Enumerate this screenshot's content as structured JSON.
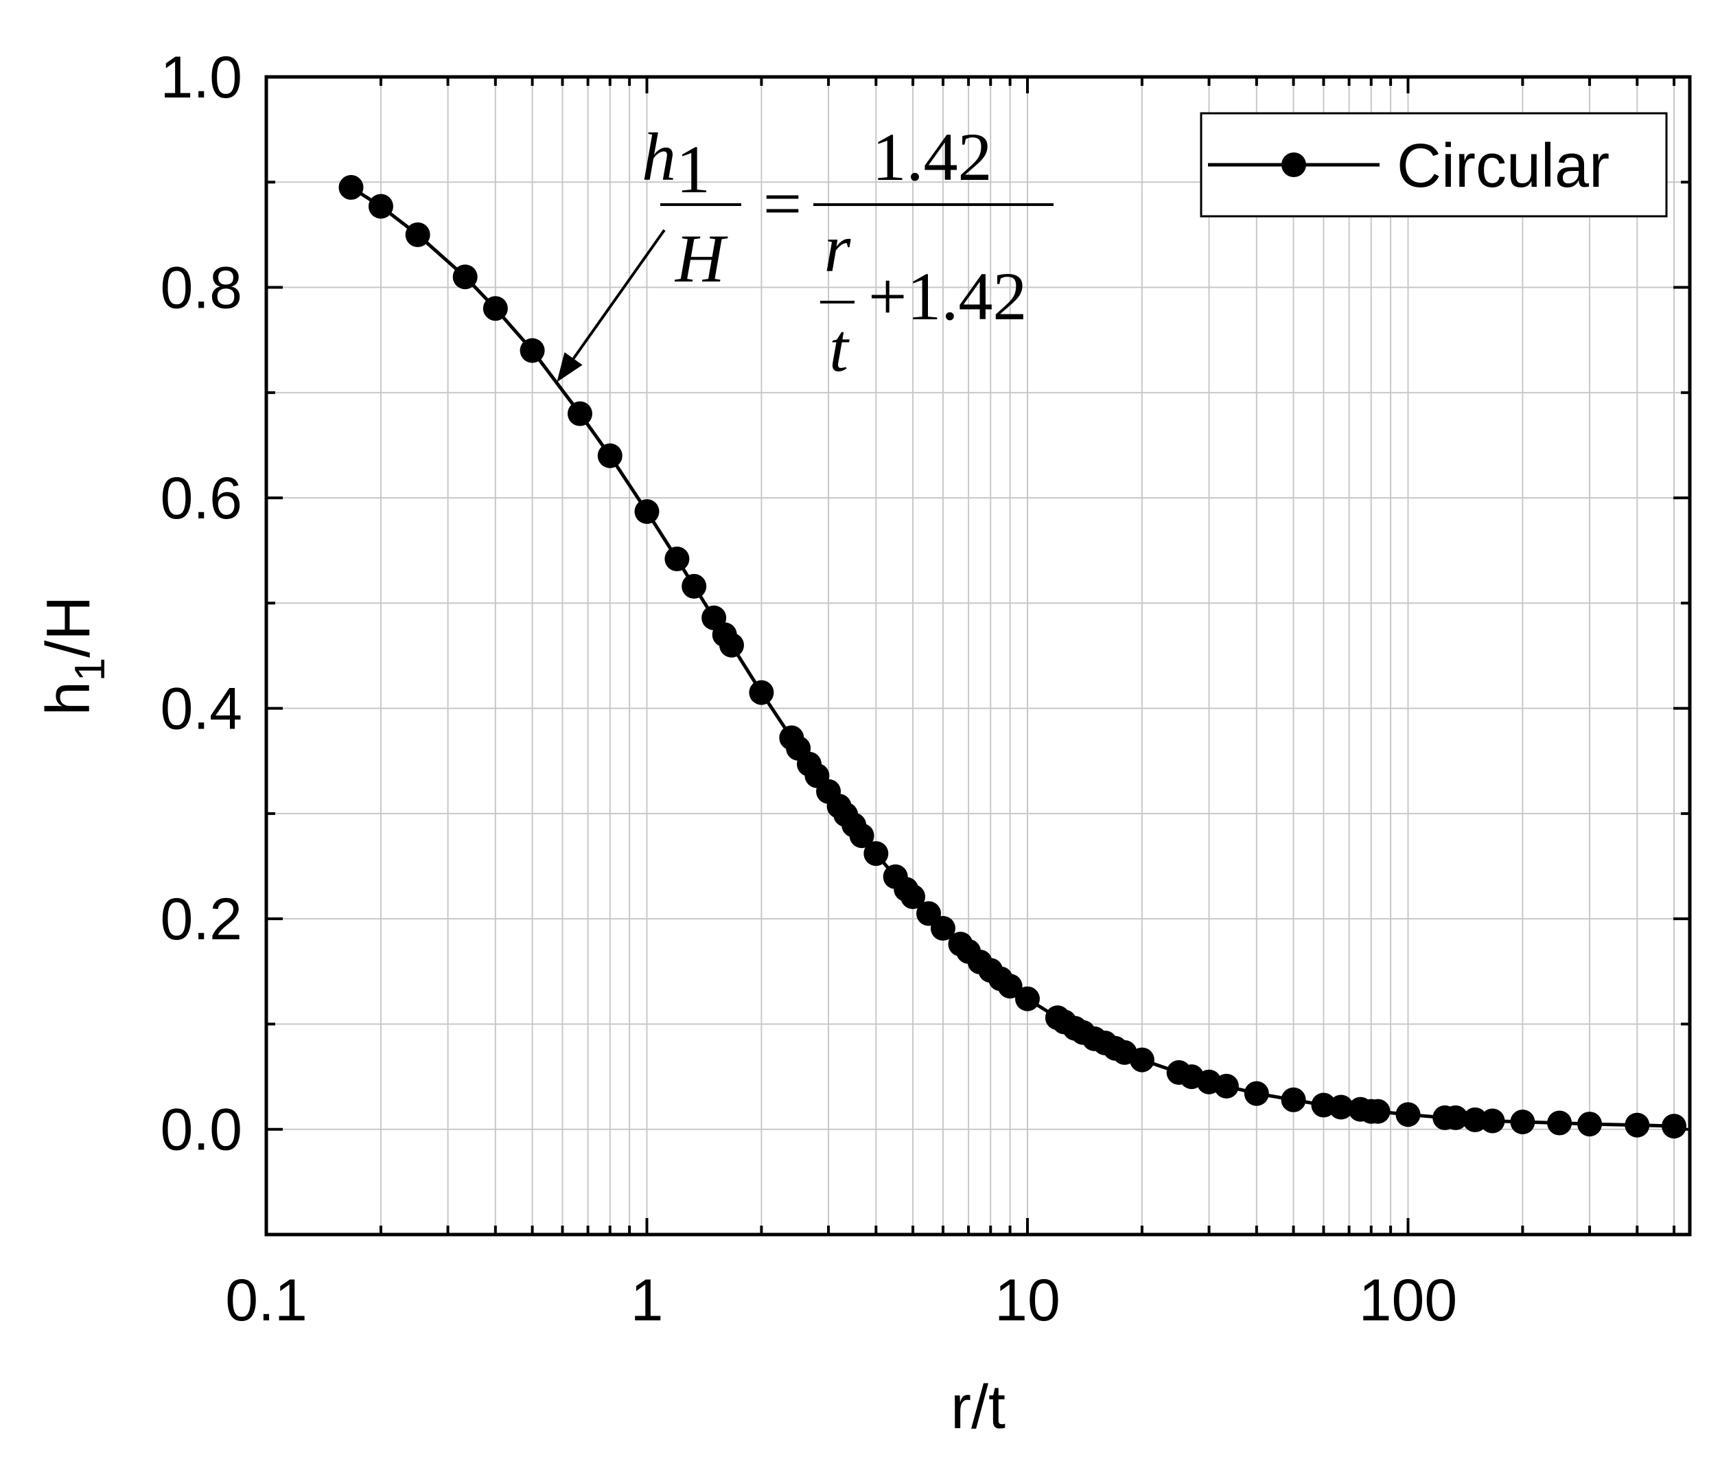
{
  "chart_data": {
    "type": "line",
    "xlabel": "r/t",
    "ylabel_main": "h",
    "ylabel_sub": "1",
    "ylabel_rest": "/H",
    "xscale": "log",
    "xlim": [
      0.1,
      550
    ],
    "ylim": [
      -0.1,
      1.0
    ],
    "x_ticks": [
      {
        "value": 0.1,
        "label": "0.1"
      },
      {
        "value": 1,
        "label": "1"
      },
      {
        "value": 10,
        "label": "10"
      },
      {
        "value": 100,
        "label": "100"
      }
    ],
    "y_ticks": [
      {
        "value": 0.0,
        "label": "0.0"
      },
      {
        "value": 0.2,
        "label": "0.2"
      },
      {
        "value": 0.4,
        "label": "0.4"
      },
      {
        "value": 0.6,
        "label": "0.6"
      },
      {
        "value": 0.8,
        "label": "0.8"
      },
      {
        "value": 1.0,
        "label": "1.0"
      }
    ],
    "grid": true,
    "legend_position": "top-right",
    "series": [
      {
        "name": "Circular",
        "color": "#000000",
        "marker": "circle",
        "x": [
          0.167,
          0.2,
          0.25,
          0.333,
          0.4,
          0.5,
          0.667,
          0.8,
          1.0,
          1.2,
          1.33,
          1.5,
          1.6,
          1.67,
          2.0,
          2.4,
          2.5,
          2.67,
          2.8,
          3.0,
          3.2,
          3.33,
          3.5,
          3.67,
          4.0,
          4.5,
          4.8,
          5.0,
          5.5,
          6.0,
          6.67,
          7.0,
          7.5,
          8.0,
          8.5,
          9.0,
          10.0,
          12.0,
          12.5,
          13.33,
          14.0,
          15.0,
          16.0,
          17.0,
          18.0,
          20.0,
          25.0,
          27.0,
          30.0,
          33.33,
          40.0,
          50.0,
          60.0,
          66.67,
          75.0,
          80.0,
          83.33,
          100.0,
          125.0,
          133.33,
          150.0,
          166.67,
          200.0,
          250.0,
          300.0,
          400.0,
          500.0
        ],
        "y": [
          0.895,
          0.877,
          0.85,
          0.81,
          0.78,
          0.74,
          0.68,
          0.64,
          0.587,
          0.542,
          0.516,
          0.486,
          0.47,
          0.46,
          0.415,
          0.372,
          0.362,
          0.347,
          0.336,
          0.321,
          0.307,
          0.299,
          0.289,
          0.279,
          0.262,
          0.24,
          0.228,
          0.221,
          0.205,
          0.191,
          0.176,
          0.169,
          0.159,
          0.151,
          0.143,
          0.136,
          0.124,
          0.106,
          0.102,
          0.096,
          0.092,
          0.086,
          0.082,
          0.077,
          0.073,
          0.066,
          0.054,
          0.05,
          0.045,
          0.041,
          0.034,
          0.028,
          0.023,
          0.021,
          0.019,
          0.017,
          0.017,
          0.014,
          0.011,
          0.011,
          0.009,
          0.008,
          0.007,
          0.006,
          0.005,
          0.004,
          0.003
        ]
      }
    ],
    "annotation": {
      "lhs_num": "h",
      "lhs_num_sub": "1",
      "lhs_den": "H",
      "equals": "=",
      "rhs_num": "1.42",
      "rhs_den_num": "r",
      "rhs_den_den": "t",
      "rhs_den_rest": "+1.42",
      "arrow_target_x": 0.58,
      "arrow_target_y": 0.71
    }
  }
}
